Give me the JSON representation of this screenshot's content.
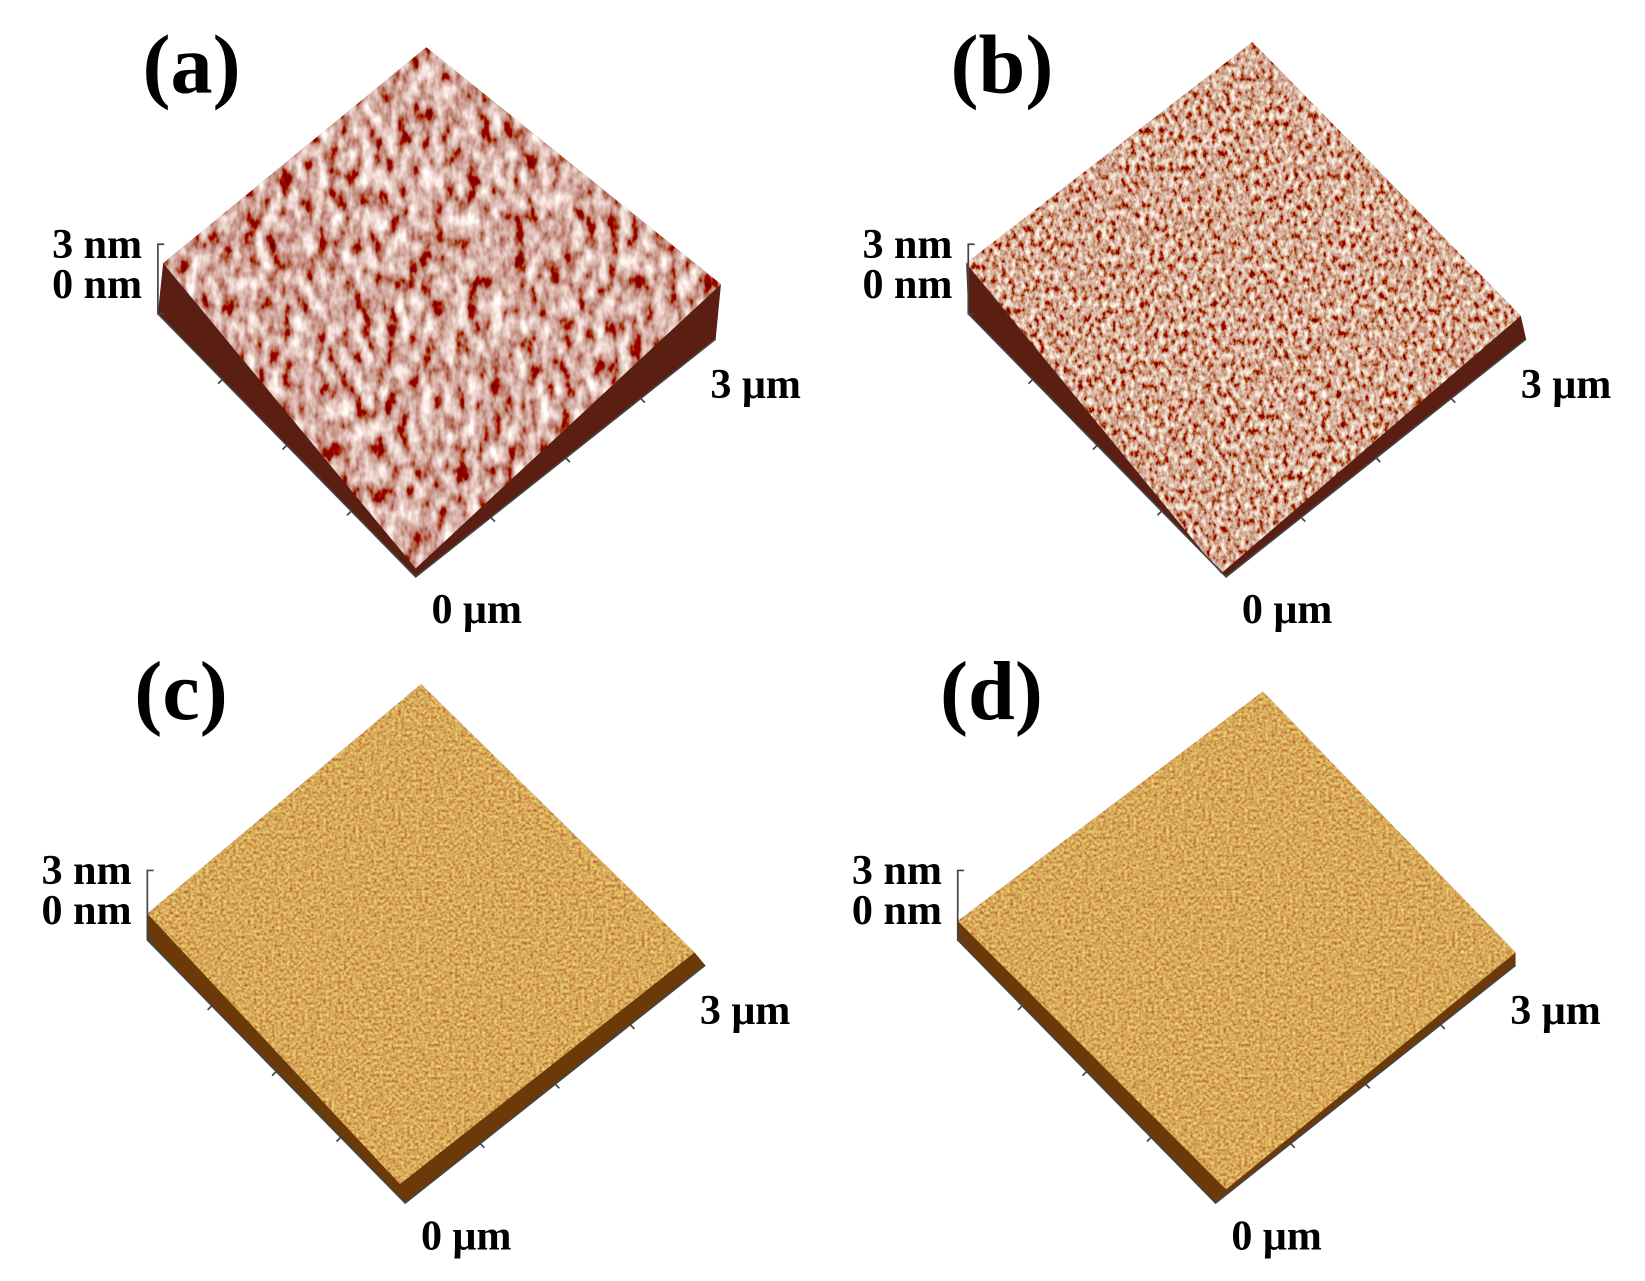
{
  "panels": [
    {
      "label": "(a)",
      "z_top": "3 nm",
      "z_bottom": "0 nm",
      "x_end": "3 μm",
      "x_start": "0 μm"
    },
    {
      "label": "(b)",
      "z_top": "3 nm",
      "z_bottom": "0 nm",
      "x_end": "3 μm",
      "x_start": "0 μm"
    },
    {
      "label": "(c)",
      "z_top": "3 nm",
      "z_bottom": "0 nm",
      "x_end": "3 μm",
      "x_start": "0 μm"
    },
    {
      "label": "(d)",
      "z_top": "3 nm",
      "z_bottom": "0 nm",
      "x_end": "3 μm",
      "x_start": "0 μm"
    }
  ]
}
